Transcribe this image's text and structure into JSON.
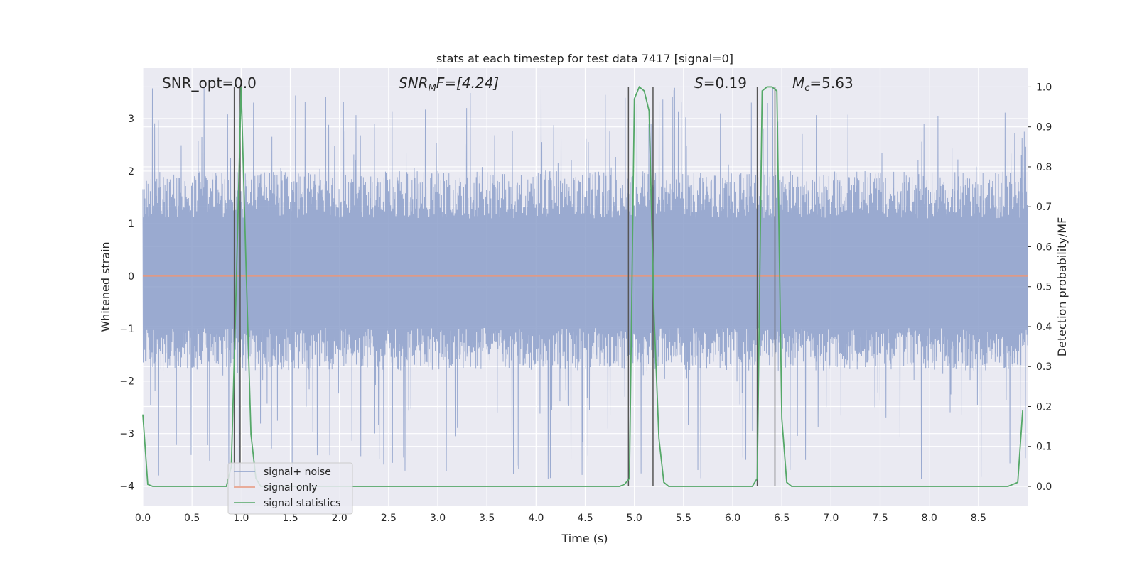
{
  "chart_data": {
    "type": "line",
    "title": "stats at each timestep for test data 7417 [signal=0]",
    "xlabel": "Time (s)",
    "ylabel_left": "Whitened strain",
    "ylabel_right": "Detection probability/MF",
    "xlim": [
      0.0,
      9.0
    ],
    "ylim_left": [
      -4.37,
      3.96
    ],
    "ylim_right": [
      -0.048,
      1.047
    ],
    "grid": true,
    "legend_position": "lower-left",
    "x_ticks": [
      "0.0",
      "0.5",
      "1.0",
      "1.5",
      "2.0",
      "2.5",
      "3.0",
      "3.5",
      "4.0",
      "4.5",
      "5.0",
      "5.5",
      "6.0",
      "6.5",
      "7.0",
      "7.5",
      "8.0",
      "8.5"
    ],
    "y_ticks_left": [
      "−4",
      "−3",
      "−2",
      "−1",
      "0",
      "1",
      "2",
      "3"
    ],
    "y_ticks_right": [
      "0.0",
      "0.1",
      "0.2",
      "0.3",
      "0.4",
      "0.5",
      "0.6",
      "0.7",
      "0.8",
      "0.9",
      "1.0"
    ],
    "annotations": {
      "snr_opt": "SNR_opt=0.0",
      "snr_mf_base": "SNR",
      "snr_mf_sub": "M",
      "snr_mf_rest": "F=[4.24]",
      "s_var": "S",
      "s_rest": "=0.19",
      "mc_var": "M",
      "mc_sub": "c",
      "mc_rest": "=5.63"
    },
    "series": [
      {
        "name": "signal+ noise",
        "color": "#8c9fca",
        "axis": "left",
        "typical_range": [
          -1.8,
          2.0
        ],
        "max_peak": 3.6,
        "min_peak": -3.9
      },
      {
        "name": "signal only",
        "color": "#e8977c",
        "axis": "left",
        "x": [
          0.0,
          9.0
        ],
        "y": [
          0.0,
          0.0
        ]
      },
      {
        "name": "signal statistics",
        "color": "#55a868",
        "axis": "right",
        "x": [
          0.0,
          0.05,
          0.1,
          0.15,
          0.85,
          0.9,
          0.95,
          1.0,
          1.05,
          1.1,
          1.15,
          1.2,
          4.85,
          4.9,
          4.95,
          5.0,
          5.05,
          5.1,
          5.15,
          5.2,
          5.25,
          5.3,
          5.35,
          6.15,
          6.2,
          6.25,
          6.3,
          6.35,
          6.4,
          6.45,
          6.5,
          6.55,
          6.6,
          8.8,
          8.85,
          8.9,
          8.95
        ],
        "y": [
          0.18,
          0.005,
          0.0,
          0.0,
          0.0,
          0.05,
          0.5,
          1.0,
          0.55,
          0.13,
          0.02,
          0.0,
          0.0,
          0.005,
          0.02,
          0.97,
          1.0,
          0.99,
          0.94,
          0.43,
          0.12,
          0.01,
          0.0,
          0.0,
          0.0,
          0.02,
          0.99,
          1.0,
          1.0,
          0.99,
          0.17,
          0.01,
          0.0,
          0.0,
          0.005,
          0.01,
          0.19
        ]
      }
    ],
    "vertical_lines_x": [
      0.93,
      0.99,
      4.94,
      5.19,
      6.25,
      6.43
    ]
  }
}
